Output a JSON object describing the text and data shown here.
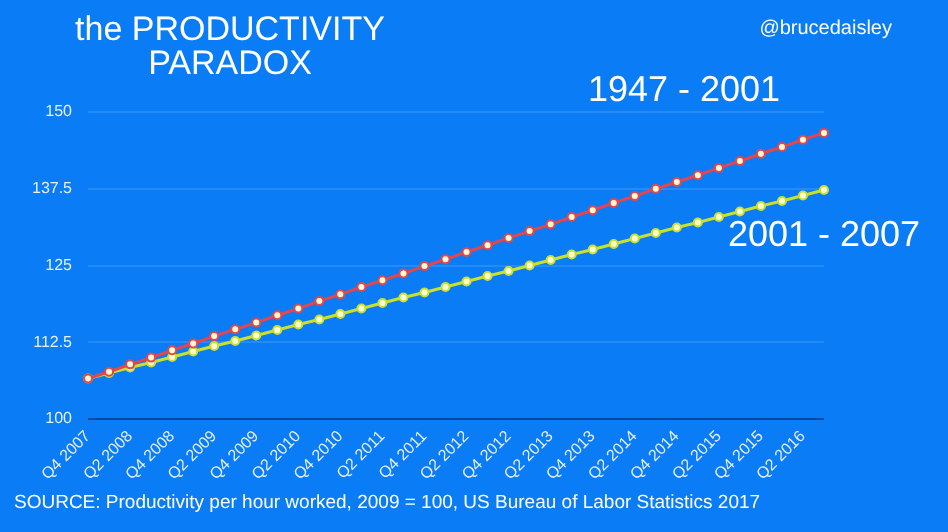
{
  "chart_data": {
    "type": "line",
    "title": "the PRODUCTIVITY\nPARADOX",
    "categories": [
      "Q4 2007",
      null,
      "Q2 2008",
      null,
      "Q4 2008",
      null,
      "Q2 2009",
      null,
      "Q4 2009",
      null,
      "Q2 2010",
      null,
      "Q4 2010",
      null,
      "Q2 2011",
      null,
      "Q4 2011",
      null,
      "Q2 2012",
      null,
      "Q4 2012",
      null,
      "Q2 2013",
      null,
      "Q4 2013",
      null,
      "Q2 2014",
      null,
      "Q4 2014",
      null,
      "Q2 2015",
      null,
      "Q4 2015",
      null,
      "Q2 2016",
      null
    ],
    "series": [
      {
        "name": "1947 - 2001",
        "color": "#e2474f",
        "values": [
          106.6,
          107.7,
          108.9,
          110.0,
          111.2,
          112.3,
          113.5,
          114.6,
          115.7,
          116.9,
          118.0,
          119.2,
          120.3,
          121.5,
          122.6,
          123.7,
          124.9,
          126.0,
          127.2,
          128.3,
          129.5,
          130.6,
          131.7,
          132.9,
          134.0,
          135.2,
          136.3,
          137.5,
          138.6,
          139.7,
          140.9,
          142.0,
          143.2,
          144.3,
          145.5,
          146.6
        ]
      },
      {
        "name": "2001 - 2007",
        "color": "#c9e02c",
        "values": [
          106.6,
          107.5,
          108.4,
          109.2,
          110.1,
          111.0,
          111.9,
          112.7,
          113.6,
          114.5,
          115.4,
          116.2,
          117.1,
          118.0,
          118.9,
          119.8,
          120.6,
          121.5,
          122.4,
          123.3,
          124.1,
          125.0,
          125.9,
          126.8,
          127.6,
          128.5,
          129.4,
          130.3,
          131.2,
          132.0,
          132.9,
          133.8,
          134.7,
          135.5,
          136.4,
          137.3
        ]
      }
    ],
    "ylim": [
      100,
      150
    ],
    "yticks": [
      100,
      112.5,
      125,
      137.5,
      150
    ],
    "grid": "y",
    "legend": false,
    "marker": "circle",
    "line_style": "solid",
    "annotations": [
      "@brucedaisley",
      "SOURCE: Productivity per hour worked, 2009 = 100, US Bureau of Labor Statistics 2017"
    ]
  }
}
